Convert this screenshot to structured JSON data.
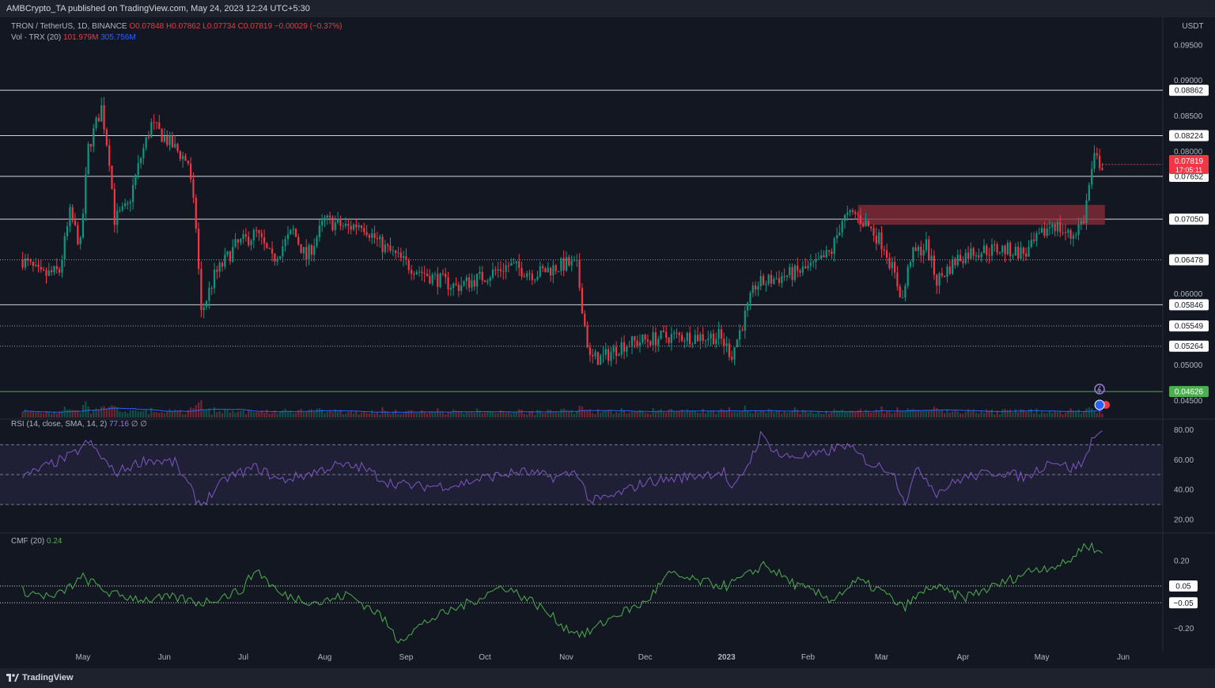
{
  "header": {
    "text": "AMBCrypto_TA published on TradingView.com, May 24, 2023 12:24 UTC+5:30"
  },
  "legend": {
    "symbol": "TRON / TetherUS, 1D, BINANCE",
    "ohlc": "O0.07848 H0.07862 L0.07734 C0.07819 −0.00029 (−0.37%)",
    "vol_label": "Vol · TRX (20)",
    "vol_value": "101.979M",
    "vol_ma": "305.756M",
    "rsi_label": "RSI (14, close, SMA, 14, 2)",
    "rsi_value": "77.16",
    "rsi_extra": "∅ ∅",
    "cmf_label": "CMF (20)",
    "cmf_value": "0.24"
  },
  "footer": {
    "brand": "TradingView"
  },
  "colors": {
    "up": "#089981",
    "down": "#f23645",
    "rsi": "#7e57c2",
    "cmf": "#4caf50",
    "vol_ma": "#2962ff",
    "zone": "#8b2d3a"
  },
  "chart_data": {
    "type": "candlestick",
    "currency": "USDT",
    "x_ticks": [
      "May",
      "Jun",
      "Jul",
      "Aug",
      "Sep",
      "Oct",
      "Nov",
      "Dec",
      "2023",
      "Feb",
      "Mar",
      "Apr",
      "May",
      "Jun"
    ],
    "price_ticks": [
      "0.09500",
      "0.09000",
      "0.08500",
      "0.08000",
      "0.06000",
      "0.05000",
      "0.04500"
    ],
    "price_range": [
      0.0426,
      0.0982
    ],
    "levels": [
      {
        "value": 0.08862,
        "label": "0.08862",
        "style": "solid"
      },
      {
        "value": 0.08224,
        "label": "0.08224",
        "style": "solid"
      },
      {
        "value": 0.07652,
        "label": "0.07652",
        "style": "solid"
      },
      {
        "value": 0.0705,
        "label": "0.07050",
        "style": "solid"
      },
      {
        "value": 0.06478,
        "label": "0.06478",
        "style": "dotted"
      },
      {
        "value": 0.05846,
        "label": "0.05846",
        "style": "solid"
      },
      {
        "value": 0.05549,
        "label": "0.05549",
        "style": "dotted"
      },
      {
        "value": 0.05264,
        "label": "0.05264",
        "style": "dotted"
      },
      {
        "value": 0.04626,
        "label": "0.04626",
        "style": "green"
      }
    ],
    "current_price": {
      "value": 0.07819,
      "label": "0.07819",
      "countdown": "17:05:11"
    },
    "zone": {
      "from": "2023-02-20",
      "to": "2023-05-25",
      "low": 0.0697,
      "high": 0.0725
    },
    "price_path": [
      [
        "2022-04-08",
        0.0648
      ],
      [
        "2022-04-15",
        0.0625
      ],
      [
        "2022-04-22",
        0.0632
      ],
      [
        "2022-04-26",
        0.0712
      ],
      [
        "2022-04-30",
        0.0668
      ],
      [
        "2022-05-03",
        0.0805
      ],
      [
        "2022-05-08",
        0.0862
      ],
      [
        "2022-05-11",
        0.079
      ],
      [
        "2022-05-13",
        0.0705
      ],
      [
        "2022-05-18",
        0.0722
      ],
      [
        "2022-05-23",
        0.0792
      ],
      [
        "2022-05-27",
        0.0838
      ],
      [
        "2022-06-03",
        0.0812
      ],
      [
        "2022-06-10",
        0.0785
      ],
      [
        "2022-06-13",
        0.0695
      ],
      [
        "2022-06-15",
        0.0572
      ],
      [
        "2022-06-20",
        0.0625
      ],
      [
        "2022-06-28",
        0.0667
      ],
      [
        "2022-07-06",
        0.0685
      ],
      [
        "2022-07-12",
        0.0647
      ],
      [
        "2022-07-20",
        0.0688
      ],
      [
        "2022-07-25",
        0.065
      ],
      [
        "2022-08-01",
        0.0703
      ],
      [
        "2022-08-10",
        0.0693
      ],
      [
        "2022-08-15",
        0.07
      ],
      [
        "2022-08-22",
        0.067
      ],
      [
        "2022-09-01",
        0.0642
      ],
      [
        "2022-09-10",
        0.0625
      ],
      [
        "2022-09-20",
        0.061
      ],
      [
        "2022-10-01",
        0.0625
      ],
      [
        "2022-10-10",
        0.064
      ],
      [
        "2022-10-20",
        0.0628
      ],
      [
        "2022-11-01",
        0.0642
      ],
      [
        "2022-11-05",
        0.0638
      ],
      [
        "2022-11-08",
        0.0555
      ],
      [
        "2022-11-10",
        0.0508
      ],
      [
        "2022-11-15",
        0.051
      ],
      [
        "2022-11-22",
        0.0528
      ],
      [
        "2022-12-01",
        0.0535
      ],
      [
        "2022-12-10",
        0.054
      ],
      [
        "2022-12-20",
        0.054
      ],
      [
        "2022-12-29",
        0.054
      ],
      [
        "2023-01-03",
        0.0515
      ],
      [
        "2023-01-07",
        0.0558
      ],
      [
        "2023-01-12",
        0.0612
      ],
      [
        "2023-01-20",
        0.0622
      ],
      [
        "2023-01-28",
        0.063
      ],
      [
        "2023-02-04",
        0.064
      ],
      [
        "2023-02-10",
        0.066
      ],
      [
        "2023-02-14",
        0.0705
      ],
      [
        "2023-02-19",
        0.0712
      ],
      [
        "2023-02-24",
        0.0695
      ],
      [
        "2023-03-02",
        0.0668
      ],
      [
        "2023-03-09",
        0.0592
      ],
      [
        "2023-03-12",
        0.0652
      ],
      [
        "2023-03-18",
        0.0668
      ],
      [
        "2023-03-22",
        0.0618
      ],
      [
        "2023-03-30",
        0.065
      ],
      [
        "2023-04-05",
        0.066
      ],
      [
        "2023-04-15",
        0.0663
      ],
      [
        "2023-04-25",
        0.0657
      ],
      [
        "2023-05-05",
        0.07
      ],
      [
        "2023-05-12",
        0.068
      ],
      [
        "2023-05-17",
        0.0705
      ],
      [
        "2023-05-19",
        0.0752
      ],
      [
        "2023-05-21",
        0.079
      ],
      [
        "2023-05-24",
        0.0782
      ]
    ],
    "rsi_range": [
      12,
      85
    ],
    "rsi_ticks": [
      80,
      60,
      40,
      20
    ],
    "rsi_band": [
      30,
      70
    ],
    "rsi_path": [
      [
        "2022-04-08",
        48
      ],
      [
        "2022-04-20",
        58
      ],
      [
        "2022-04-27",
        63
      ],
      [
        "2022-05-03",
        72
      ],
      [
        "2022-05-08",
        62
      ],
      [
        "2022-05-13",
        51
      ],
      [
        "2022-05-25",
        60
      ],
      [
        "2022-06-05",
        58
      ],
      [
        "2022-06-13",
        34
      ],
      [
        "2022-06-15",
        30
      ],
      [
        "2022-06-25",
        48
      ],
      [
        "2022-07-06",
        55
      ],
      [
        "2022-07-15",
        46
      ],
      [
        "2022-07-25",
        50
      ],
      [
        "2022-08-05",
        56
      ],
      [
        "2022-08-15",
        55
      ],
      [
        "2022-08-25",
        45
      ],
      [
        "2022-09-05",
        42
      ],
      [
        "2022-09-20",
        43
      ],
      [
        "2022-10-01",
        48
      ],
      [
        "2022-10-15",
        52
      ],
      [
        "2022-10-28",
        48
      ],
      [
        "2022-11-05",
        52
      ],
      [
        "2022-11-10",
        32
      ],
      [
        "2022-11-18",
        35
      ],
      [
        "2022-12-01",
        45
      ],
      [
        "2022-12-15",
        48
      ],
      [
        "2022-12-31",
        52
      ],
      [
        "2023-01-03",
        38
      ],
      [
        "2023-01-10",
        60
      ],
      [
        "2023-01-14",
        76
      ],
      [
        "2023-01-22",
        62
      ],
      [
        "2023-02-05",
        63
      ],
      [
        "2023-02-15",
        70
      ],
      [
        "2023-02-25",
        57
      ],
      [
        "2023-03-05",
        53
      ],
      [
        "2023-03-10",
        32
      ],
      [
        "2023-03-15",
        55
      ],
      [
        "2023-03-22",
        38
      ],
      [
        "2023-04-01",
        48
      ],
      [
        "2023-04-15",
        52
      ],
      [
        "2023-04-25",
        48
      ],
      [
        "2023-05-05",
        60
      ],
      [
        "2023-05-12",
        54
      ],
      [
        "2023-05-17",
        58
      ],
      [
        "2023-05-21",
        78
      ],
      [
        "2023-05-24",
        77
      ]
    ],
    "cmf_range": [
      -0.33,
      0.35
    ],
    "cmf_ticks": [
      0.2,
      -0.2
    ],
    "cmf_levels": [
      {
        "value": 0.05,
        "label": "0.05"
      },
      {
        "value": -0.05,
        "label": "−0.05"
      }
    ],
    "cmf_path": [
      [
        "2022-04-08",
        0.02
      ],
      [
        "2022-04-20",
        -0.02
      ],
      [
        "2022-05-01",
        0.1
      ],
      [
        "2022-05-12",
        0.0
      ],
      [
        "2022-05-25",
        -0.03
      ],
      [
        "2022-06-05",
        -0.02
      ],
      [
        "2022-06-15",
        -0.05
      ],
      [
        "2022-06-30",
        0.02
      ],
      [
        "2022-07-06",
        0.15
      ],
      [
        "2022-07-15",
        0.0
      ],
      [
        "2022-07-30",
        -0.05
      ],
      [
        "2022-08-10",
        0.0
      ],
      [
        "2022-08-22",
        -0.12
      ],
      [
        "2022-08-29",
        -0.27
      ],
      [
        "2022-09-10",
        -0.15
      ],
      [
        "2022-09-25",
        -0.05
      ],
      [
        "2022-10-08",
        0.05
      ],
      [
        "2022-10-20",
        -0.05
      ],
      [
        "2022-11-01",
        -0.2
      ],
      [
        "2022-11-08",
        -0.24
      ],
      [
        "2022-11-20",
        -0.12
      ],
      [
        "2022-12-01",
        -0.05
      ],
      [
        "2022-12-10",
        0.12
      ],
      [
        "2022-12-20",
        0.08
      ],
      [
        "2023-01-01",
        0.05
      ],
      [
        "2023-01-10",
        0.12
      ],
      [
        "2023-01-15",
        0.18
      ],
      [
        "2023-01-28",
        0.05
      ],
      [
        "2023-02-10",
        -0.03
      ],
      [
        "2023-02-20",
        0.08
      ],
      [
        "2023-03-01",
        0.02
      ],
      [
        "2023-03-09",
        -0.08
      ],
      [
        "2023-03-20",
        0.05
      ],
      [
        "2023-04-01",
        -0.02
      ],
      [
        "2023-04-15",
        0.06
      ],
      [
        "2023-04-28",
        0.15
      ],
      [
        "2023-05-10",
        0.18
      ],
      [
        "2023-05-18",
        0.3
      ],
      [
        "2023-05-24",
        0.24
      ]
    ]
  }
}
